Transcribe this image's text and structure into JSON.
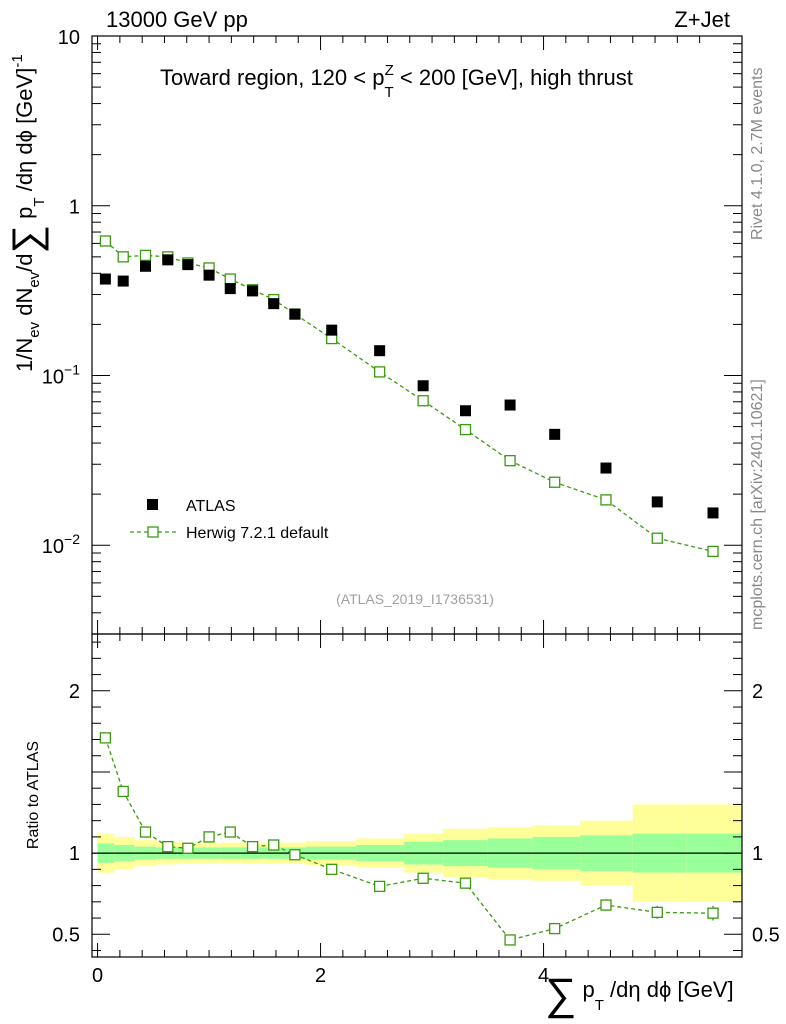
{
  "header": {
    "left": "13000 GeV pp",
    "right": "Z+Jet"
  },
  "side": {
    "rivet": "Rivet 4.1.0,  2.7M events",
    "mcplots": "mcplots.cern.ch [arXiv:2401.10621]"
  },
  "chart_data": [
    {
      "type": "scatter",
      "panel": "main",
      "title": "Toward region, 120 < p_T^Z < 200 [GeV], high thrust",
      "title_parts": {
        "a": "Toward region, 120 < p",
        "sub": "T",
        "sup": "Z",
        "b": " < 200 [GeV], high thrust"
      },
      "ylabel": "1/N_ev dN_ev/d Σ p_T /dη dϕ [GeV]^-1",
      "ylabel_parts": {
        "p1": "1/N",
        "s1": "ev",
        "p2": " dN",
        "s2": "ev",
        "p3": "/d",
        "sum": "∑",
        "p4": " p",
        "s3": "T",
        "p5": " /dη dϕ  [GeV]",
        "sup": "-1"
      },
      "yscale": "log",
      "ylim": [
        0.003,
        10
      ],
      "yticks": [
        {
          "value": 10,
          "base": "10",
          "exp": ""
        },
        {
          "value": 1,
          "base": "1",
          "exp": ""
        },
        {
          "value": 0.1,
          "base": "10",
          "exp": "−1"
        },
        {
          "value": 0.01,
          "base": "10",
          "exp": "−2"
        }
      ],
      "xlim": [
        -0.05,
        5.78
      ],
      "watermark": "(ATLAS_2019_I1736531)",
      "legend_position": "lower-left",
      "series": [
        {
          "name": "ATLAS",
          "marker": "filled-square",
          "color": "#000000",
          "x": [
            0.07,
            0.23,
            0.43,
            0.63,
            0.81,
            1.0,
            1.19,
            1.39,
            1.58,
            1.77,
            2.1,
            2.53,
            2.92,
            3.3,
            3.7,
            4.1,
            4.56,
            5.02,
            5.52
          ],
          "y": [
            0.37,
            0.36,
            0.44,
            0.48,
            0.45,
            0.39,
            0.325,
            0.315,
            0.265,
            0.23,
            0.185,
            0.14,
            0.087,
            0.062,
            0.067,
            0.045,
            0.0285,
            0.018,
            0.0155
          ]
        },
        {
          "name": "Herwig 7.2.1 default",
          "marker": "open-square",
          "line": "dashed",
          "color": "#3a9a10",
          "x": [
            0.07,
            0.23,
            0.43,
            0.63,
            0.81,
            1.0,
            1.19,
            1.39,
            1.58,
            1.77,
            2.1,
            2.53,
            2.92,
            3.3,
            3.7,
            4.1,
            4.56,
            5.02,
            5.52
          ],
          "y": [
            0.62,
            0.5,
            0.51,
            0.5,
            0.46,
            0.43,
            0.37,
            0.32,
            0.28,
            0.23,
            0.165,
            0.105,
            0.071,
            0.048,
            0.0315,
            0.0235,
            0.0185,
            0.011,
            0.0092
          ]
        }
      ]
    },
    {
      "type": "line",
      "panel": "ratio",
      "ylabel": "Ratio to ATLAS",
      "xlabel": "Σ p_T /dη dϕ [GeV]",
      "xlabel_parts": {
        "sum": "∑",
        "a": " p",
        "sub": "T",
        "b": " /dη dϕ [GeV]"
      },
      "ylim": [
        0.36,
        2.35
      ],
      "yticks": [
        {
          "value": 2,
          "label": "2"
        },
        {
          "value": 1,
          "label": "1"
        },
        {
          "value": 0.5,
          "label": "0.5"
        }
      ],
      "xticks": [
        {
          "value": 0,
          "label": "0"
        },
        {
          "value": 2,
          "label": "2"
        },
        {
          "value": 4,
          "label": "4"
        }
      ],
      "xlim": [
        -0.05,
        5.78
      ],
      "reference_line": 1,
      "series": [
        {
          "name": "Herwig 7.2.1 default / ATLAS",
          "color": "#3a9a10",
          "x": [
            0.07,
            0.23,
            0.43,
            0.63,
            0.81,
            1.0,
            1.19,
            1.39,
            1.58,
            1.77,
            2.1,
            2.53,
            2.92,
            3.3,
            3.7,
            4.1,
            4.56,
            5.02,
            5.52
          ],
          "y": [
            1.71,
            1.38,
            1.13,
            1.04,
            1.03,
            1.1,
            1.13,
            1.04,
            1.05,
            0.99,
            0.9,
            0.795,
            0.845,
            0.815,
            0.465,
            0.535,
            0.68,
            0.635,
            0.63
          ],
          "yerr": [
            0.02,
            0.02,
            0.015,
            0.015,
            0.015,
            0.015,
            0.015,
            0.015,
            0.015,
            0.015,
            0.015,
            0.015,
            0.015,
            0.015,
            0.02,
            0.03,
            0.035,
            0.04,
            0.045
          ]
        }
      ],
      "uncertainty_bands": {
        "edges": [
          0.0,
          0.15,
          0.33,
          0.53,
          0.72,
          0.9,
          1.1,
          1.29,
          1.48,
          1.67,
          1.87,
          2.32,
          2.75,
          3.1,
          3.5,
          3.9,
          4.33,
          4.8,
          5.28,
          5.78
        ],
        "inner_color": "#99ff99",
        "outer_color": "#ffff99",
        "stat": [
          0.06,
          0.05,
          0.04,
          0.035,
          0.035,
          0.035,
          0.035,
          0.035,
          0.035,
          0.035,
          0.04,
          0.05,
          0.07,
          0.08,
          0.09,
          0.1,
          0.11,
          0.12,
          0.12
        ],
        "total": [
          0.12,
          0.1,
          0.08,
          0.07,
          0.065,
          0.065,
          0.065,
          0.065,
          0.065,
          0.065,
          0.075,
          0.09,
          0.12,
          0.15,
          0.16,
          0.17,
          0.2,
          0.3,
          0.3
        ]
      }
    }
  ]
}
